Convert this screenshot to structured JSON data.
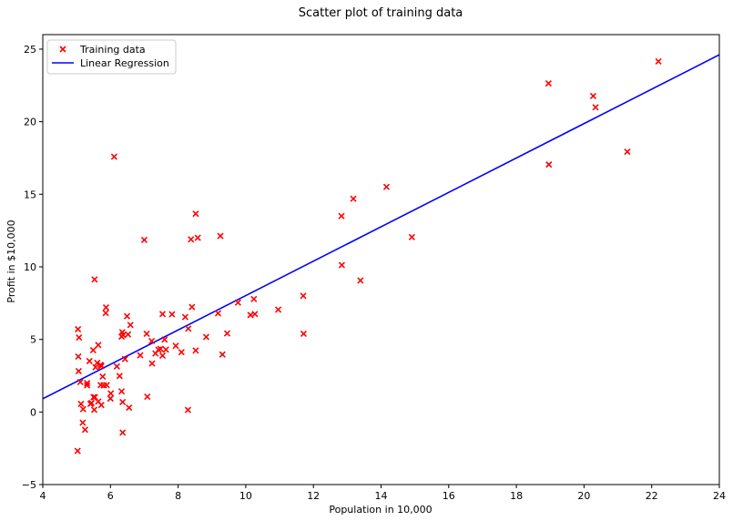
{
  "chart_data": {
    "type": "scatter",
    "title": "Scatter plot of training data",
    "xlabel": "Population in 10,000",
    "ylabel": "Profit in $10,000",
    "xlim": [
      4,
      24
    ],
    "ylim": [
      -5,
      26
    ],
    "xticks": [
      4,
      6,
      8,
      10,
      12,
      14,
      16,
      18,
      20,
      22,
      24
    ],
    "yticks": [
      -5,
      0,
      5,
      10,
      15,
      20,
      25
    ],
    "grid": false,
    "legend_position": "upper-left",
    "colors": {
      "scatter": "#ff0000",
      "line": "#0000ff",
      "axes": "#000000"
    },
    "series": [
      {
        "name": "Training data",
        "kind": "scatter",
        "marker": "x",
        "points": [
          [
            6.11,
            17.59
          ],
          [
            5.53,
            9.13
          ],
          [
            8.52,
            13.66
          ],
          [
            7.0,
            11.85
          ],
          [
            5.86,
            6.82
          ],
          [
            8.38,
            11.89
          ],
          [
            7.48,
            4.35
          ],
          [
            8.58,
            12.0
          ],
          [
            6.49,
            6.6
          ],
          [
            5.05,
            3.82
          ],
          [
            5.71,
            3.25
          ],
          [
            14.16,
            15.51
          ],
          [
            5.73,
            3.16
          ],
          [
            8.41,
            7.23
          ],
          [
            5.64,
            0.72
          ],
          [
            5.38,
            3.51
          ],
          [
            6.37,
            5.3
          ],
          [
            5.13,
            0.56
          ],
          [
            6.43,
            3.65
          ],
          [
            7.07,
            5.39
          ],
          [
            6.19,
            3.14
          ],
          [
            20.27,
            21.77
          ],
          [
            5.49,
            4.26
          ],
          [
            6.33,
            5.19
          ],
          [
            5.56,
            3.08
          ],
          [
            18.95,
            22.64
          ],
          [
            12.83,
            13.5
          ],
          [
            10.96,
            7.05
          ],
          [
            13.18,
            14.69
          ],
          [
            22.2,
            24.15
          ],
          [
            5.25,
            -1.22
          ],
          [
            6.59,
            5.99
          ],
          [
            9.25,
            12.13
          ],
          [
            5.89,
            1.85
          ],
          [
            8.21,
            6.54
          ],
          [
            7.93,
            4.56
          ],
          [
            8.1,
            4.12
          ],
          [
            5.61,
            3.39
          ],
          [
            12.84,
            10.12
          ],
          [
            6.35,
            5.5
          ],
          [
            5.41,
            0.56
          ],
          [
            6.88,
            3.91
          ],
          [
            11.71,
            5.39
          ],
          [
            5.77,
            2.44
          ],
          [
            7.82,
            6.73
          ],
          [
            7.09,
            1.05
          ],
          [
            5.07,
            5.13
          ],
          [
            5.8,
            1.84
          ],
          [
            11.7,
            8.0
          ],
          [
            5.54,
            1.02
          ],
          [
            7.54,
            6.75
          ],
          [
            5.31,
            1.84
          ],
          [
            7.42,
            4.29
          ],
          [
            7.6,
            4.99
          ],
          [
            6.33,
            1.42
          ],
          [
            6.36,
            -1.42
          ],
          [
            6.27,
            2.48
          ],
          [
            5.64,
            4.61
          ],
          [
            9.31,
            3.96
          ],
          [
            9.45,
            5.41
          ],
          [
            8.83,
            5.17
          ],
          [
            5.18,
            -0.74
          ],
          [
            21.28,
            17.93
          ],
          [
            14.91,
            12.05
          ],
          [
            18.96,
            17.05
          ],
          [
            7.22,
            4.89
          ],
          [
            8.3,
            5.74
          ],
          [
            10.24,
            7.78
          ],
          [
            5.5,
            1.02
          ],
          [
            20.34,
            20.99
          ],
          [
            10.14,
            6.68
          ],
          [
            7.33,
            4.03
          ],
          [
            6.01,
            1.28
          ],
          [
            7.23,
            3.34
          ],
          [
            5.03,
            -2.68
          ],
          [
            6.55,
            0.3
          ],
          [
            7.54,
            3.88
          ],
          [
            5.04,
            5.7
          ],
          [
            10.27,
            6.75
          ],
          [
            5.11,
            2.06
          ],
          [
            5.73,
            0.48
          ],
          [
            5.19,
            0.2
          ],
          [
            6.36,
            0.68
          ],
          [
            9.77,
            7.54
          ],
          [
            6.52,
            5.34
          ],
          [
            8.52,
            4.24
          ],
          [
            9.18,
            6.8
          ],
          [
            6.0,
            0.93
          ],
          [
            5.52,
            0.15
          ],
          [
            5.06,
            2.82
          ],
          [
            5.71,
            1.85
          ],
          [
            7.64,
            4.3
          ],
          [
            5.87,
            7.2
          ],
          [
            5.31,
            1.99
          ],
          [
            8.29,
            0.14
          ],
          [
            13.39,
            9.06
          ],
          [
            5.44,
            0.62
          ]
        ]
      },
      {
        "name": "Linear Regression",
        "kind": "line",
        "points": [
          [
            4,
            0.91
          ],
          [
            24,
            24.61
          ]
        ]
      }
    ]
  }
}
